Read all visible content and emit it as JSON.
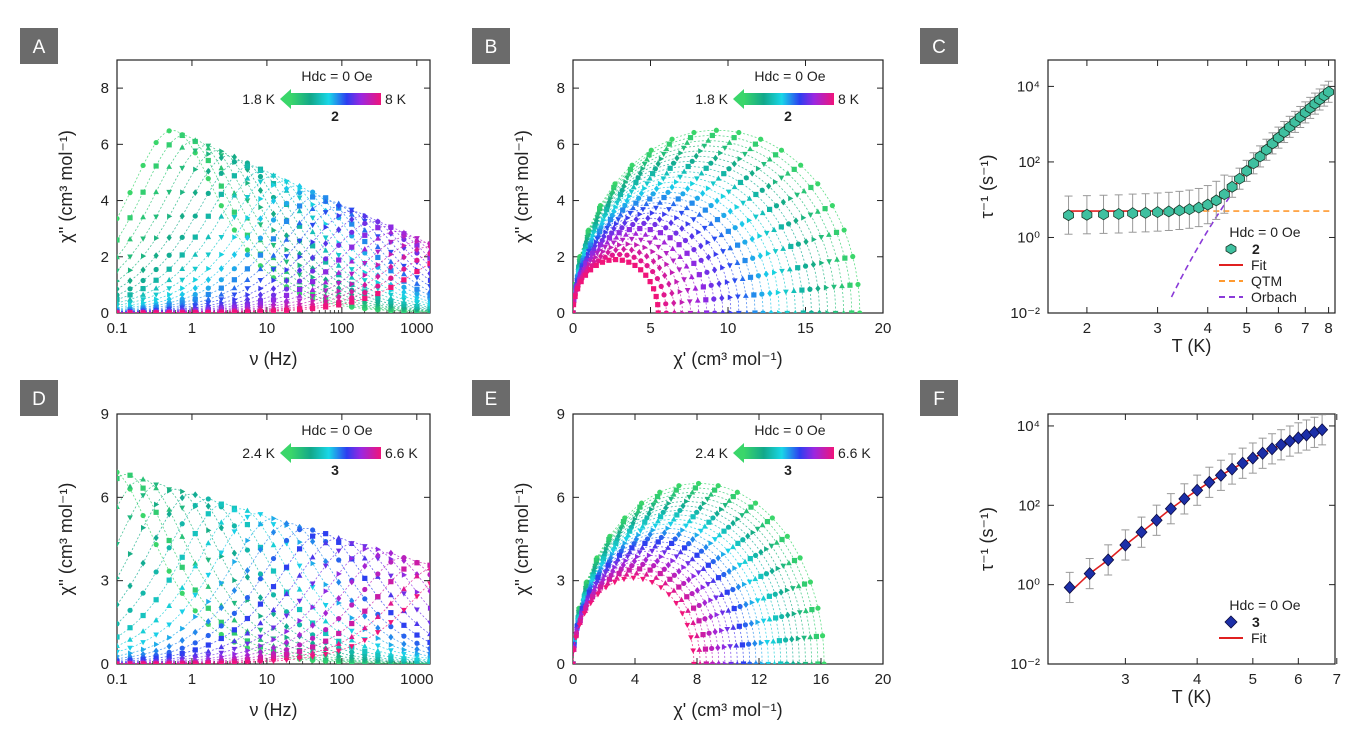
{
  "chart_data": [
    {
      "id": "A",
      "type": "scatter",
      "panel_label": "A",
      "xscale": "log",
      "xlim": [
        0.1,
        1500
      ],
      "ylim": [
        0,
        9
      ],
      "xticks": [
        0.1,
        1,
        10,
        100,
        1000
      ],
      "xtick_labels": [
        "0.1",
        "1",
        "10",
        "100",
        "1000"
      ],
      "yticks": [
        0,
        2,
        4,
        6,
        8
      ],
      "ytick_labels": [
        "0",
        "2",
        "4",
        "6",
        "8"
      ],
      "xlabel": "ν (Hz)",
      "ylabel": "χ'' (cm³ mol⁻¹)",
      "legend": {
        "field": "Hdc = 0 Oe",
        "t_low": "1.8 K",
        "t_high": "8 K",
        "compound": "2"
      },
      "series_count": 26,
      "curve_model": {
        "kind": "debye",
        "peak_first": 6.5,
        "peak_last": 2.0,
        "peak_freq_first": 0.55,
        "peak_freq_last": 3000
      }
    },
    {
      "id": "B",
      "type": "scatter",
      "panel_label": "B",
      "xscale": "linear",
      "xlim": [
        0,
        20
      ],
      "ylim": [
        0,
        9
      ],
      "xticks": [
        0,
        5,
        10,
        15,
        20
      ],
      "xtick_labels": [
        "0",
        "5",
        "10",
        "15",
        "20"
      ],
      "yticks": [
        0,
        2,
        4,
        6,
        8
      ],
      "ytick_labels": [
        "0",
        "2",
        "4",
        "6",
        "8"
      ],
      "xlabel": "χ' (cm³ mol⁻¹)",
      "ylabel": "χ'' (cm³ mol⁻¹)",
      "legend": {
        "field": "Hdc = 0 Oe",
        "t_low": "1.8 K",
        "t_high": "8 K",
        "compound": "2"
      },
      "series_count": 26,
      "curve_model": {
        "kind": "cole",
        "chiT_first": 18.5,
        "chiT_last": 5.5,
        "height_first": 6.5,
        "height_last": 1.9
      }
    },
    {
      "id": "C",
      "type": "scatter",
      "panel_label": "C",
      "xscale": "log",
      "yscale": "log",
      "xlim": [
        1.6,
        8.3
      ],
      "ylim": [
        0.01,
        50000
      ],
      "xticks": [
        2,
        3,
        4,
        5,
        6,
        7,
        8
      ],
      "xtick_labels": [
        "2",
        "3",
        "4",
        "5",
        "6",
        "7",
        "8"
      ],
      "yticks": [
        0.01,
        1,
        100,
        10000
      ],
      "ytick_labels": [
        "10⁻²",
        "10⁰",
        "10²",
        "10⁴"
      ],
      "xlabel": "T (K)",
      "ylabel": "τ⁻¹ (s⁻¹)",
      "legend": {
        "field": "Hdc = 0 Oe",
        "compound": "2",
        "fit": "Fit",
        "qtm": "QTM",
        "orbach": "Orbach"
      },
      "points": {
        "x": [
          1.8,
          2.0,
          2.2,
          2.4,
          2.6,
          2.8,
          3.0,
          3.2,
          3.4,
          3.6,
          3.8,
          4.0,
          4.2,
          4.4,
          4.6,
          4.8,
          5.0,
          5.2,
          5.4,
          5.6,
          5.8,
          6.0,
          6.2,
          6.4,
          6.6,
          6.8,
          7.0,
          7.2,
          7.4,
          7.6,
          7.8,
          8.0
        ],
        "y": [
          3.9,
          4.0,
          4.1,
          4.2,
          4.4,
          4.5,
          4.7,
          4.9,
          5.2,
          5.6,
          6.2,
          7.4,
          9.6,
          14,
          22,
          36,
          58,
          92,
          140,
          210,
          310,
          440,
          620,
          850,
          1150,
          1550,
          2050,
          2700,
          3500,
          4500,
          5700,
          7200
        ]
      },
      "qtm_rate": 5.0,
      "orbach": {
        "A": 60000000.0,
        "Ueff_K": 70
      },
      "colors": {
        "marker": "#3fc0a0",
        "fit": "#e02020",
        "qtm": "#ff9a30",
        "orbach": "#8a3ad8",
        "errorbar": "#999999"
      }
    },
    {
      "id": "D",
      "type": "scatter",
      "panel_label": "D",
      "xscale": "log",
      "xlim": [
        0.1,
        1500
      ],
      "ylim": [
        0,
        9
      ],
      "xticks": [
        0.1,
        1,
        10,
        100,
        1000
      ],
      "xtick_labels": [
        "0.1",
        "1",
        "10",
        "100",
        "1000"
      ],
      "yticks": [
        0,
        3,
        6,
        9
      ],
      "ytick_labels": [
        "0",
        "3",
        "6",
        "9"
      ],
      "xlabel": "ν (Hz)",
      "ylabel": "χ'' (cm³ mol⁻¹)",
      "legend": {
        "field": "Hdc = 0 Oe",
        "t_low": "2.4 K",
        "t_high": "6.6 K",
        "compound": "3"
      },
      "series_count": 22,
      "curve_model": {
        "kind": "debye",
        "peak_first": 7.0,
        "peak_last": 3.3,
        "peak_freq_first": 0.08,
        "peak_freq_last": 3000
      }
    },
    {
      "id": "E",
      "type": "scatter",
      "panel_label": "E",
      "xscale": "linear",
      "xlim": [
        0,
        20
      ],
      "ylim": [
        0,
        9
      ],
      "xticks": [
        0,
        4,
        8,
        12,
        16,
        20
      ],
      "xtick_labels": [
        "0",
        "4",
        "8",
        "12",
        "16",
        "20"
      ],
      "yticks": [
        0,
        3,
        6,
        9
      ],
      "ytick_labels": [
        "0",
        "3",
        "6",
        "9"
      ],
      "xlabel": "χ' (cm³ mol⁻¹)",
      "ylabel": "χ'' (cm³ mol⁻¹)",
      "legend": {
        "field": "Hdc = 0 Oe",
        "t_low": "2.4 K",
        "t_high": "6.6 K",
        "compound": "3"
      },
      "series_count": 22,
      "curve_model": {
        "kind": "cole",
        "chiT_first": 16.2,
        "chiT_last": 7.8,
        "height_first": 6.5,
        "height_last": 3.1
      }
    },
    {
      "id": "F",
      "type": "scatter",
      "panel_label": "F",
      "xscale": "log",
      "yscale": "log",
      "xlim": [
        2.2,
        6.95
      ],
      "ylim": [
        0.01,
        20000
      ],
      "xticks": [
        3,
        4,
        5,
        6,
        7
      ],
      "xtick_labels": [
        "3",
        "4",
        "5",
        "6",
        "7"
      ],
      "yticks": [
        0.01,
        1,
        100,
        10000
      ],
      "ytick_labels": [
        "10⁻²",
        "10⁰",
        "10²",
        "10⁴"
      ],
      "xlabel": "T (K)",
      "ylabel": "τ⁻¹ (s⁻¹)",
      "legend": {
        "field": "Hdc = 0 Oe",
        "compound": "3",
        "fit": "Fit"
      },
      "points": {
        "x": [
          2.4,
          2.6,
          2.8,
          3.0,
          3.2,
          3.4,
          3.6,
          3.8,
          4.0,
          4.2,
          4.4,
          4.6,
          4.8,
          5.0,
          5.2,
          5.4,
          5.6,
          5.8,
          6.0,
          6.2,
          6.4,
          6.6
        ],
        "y": [
          0.85,
          1.9,
          4.2,
          10,
          21,
          42,
          82,
          145,
          240,
          380,
          570,
          820,
          1150,
          1550,
          2050,
          2650,
          3350,
          4150,
          5000,
          5900,
          6900,
          8000
        ]
      },
      "colors": {
        "marker": "#1c2fa8",
        "fit": "#e02020",
        "errorbar": "#999999"
      }
    }
  ]
}
